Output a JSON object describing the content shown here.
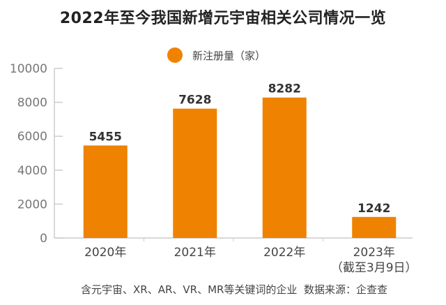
{
  "chart_data": {
    "type": "bar",
    "title": "2022年至今我国新增元宇宙相关公司情况一览",
    "categories": [
      "2020年",
      "2021年",
      "2022年",
      "2023年"
    ],
    "category_sublabels": [
      "",
      "",
      "",
      "（截至3月9日）"
    ],
    "series": [
      {
        "name": "新注册量（家）",
        "values": [
          5455,
          7628,
          8282,
          1242
        ],
        "color": "#EF8200"
      }
    ],
    "ylim": [
      0,
      10000
    ],
    "yticks": [
      0,
      2000,
      4000,
      6000,
      8000,
      10000
    ],
    "xlabel": "",
    "ylabel": "",
    "grid": false,
    "legend": "top-center",
    "data_labels": true,
    "footnote": "含元宇宙、XR、AR、VR、MR等关键词的企业  数据来源：企查查"
  }
}
